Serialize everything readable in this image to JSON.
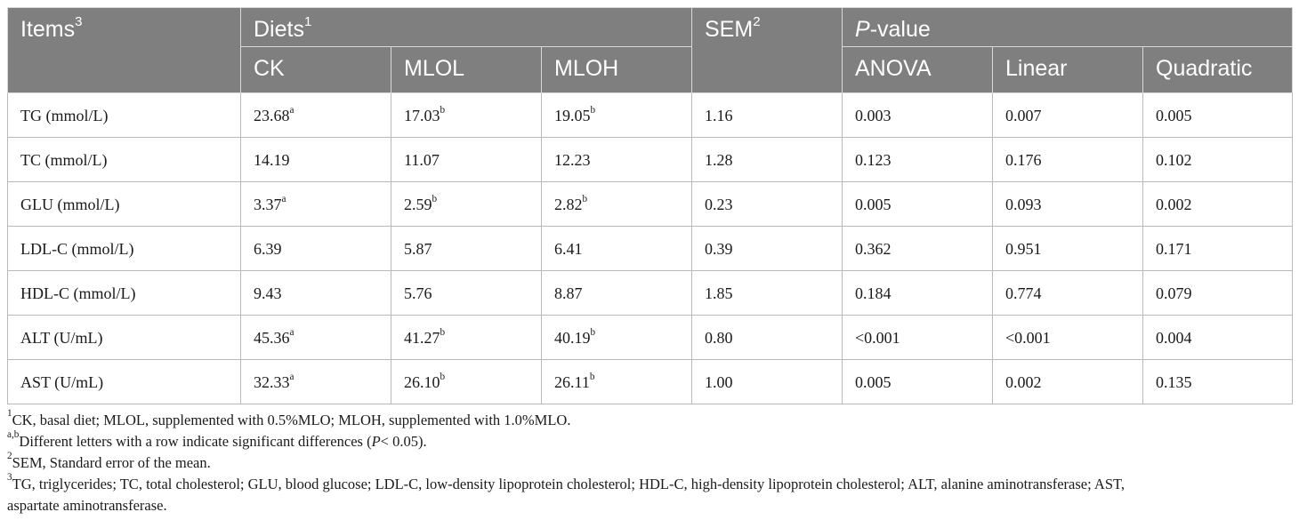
{
  "header": {
    "items": "Items",
    "items_sup": "3",
    "diets": "Diets",
    "diets_sup": "1",
    "sem": "SEM",
    "sem_sup": "2",
    "pvalue_italic": "P",
    "pvalue_rest": "-value",
    "sub": [
      "CK",
      "MLOL",
      "MLOH",
      "ANOVA",
      "Linear",
      "Quadratic"
    ]
  },
  "rows": [
    {
      "item": "TG (mmol/L)",
      "ck": "23.68",
      "ck_sup": "a",
      "mlol": "17.03",
      "mlol_sup": "b",
      "mloh": "19.05",
      "mloh_sup": "b",
      "sem": "1.16",
      "anova": "0.003",
      "linear": "0.007",
      "quadratic": "0.005"
    },
    {
      "item": "TC (mmol/L)",
      "ck": "14.19",
      "ck_sup": "",
      "mlol": "11.07",
      "mlol_sup": "",
      "mloh": "12.23",
      "mloh_sup": "",
      "sem": "1.28",
      "anova": "0.123",
      "linear": "0.176",
      "quadratic": "0.102"
    },
    {
      "item": "GLU (mmol/L)",
      "ck": "3.37",
      "ck_sup": "a",
      "mlol": "2.59",
      "mlol_sup": "b",
      "mloh": "2.82",
      "mloh_sup": "b",
      "sem": "0.23",
      "anova": "0.005",
      "linear": "0.093",
      "quadratic": "0.002"
    },
    {
      "item": "LDL-C (mmol/L)",
      "ck": "6.39",
      "ck_sup": "",
      "mlol": "5.87",
      "mlol_sup": "",
      "mloh": "6.41",
      "mloh_sup": "",
      "sem": "0.39",
      "anova": "0.362",
      "linear": "0.951",
      "quadratic": "0.171"
    },
    {
      "item": "HDL-C (mmol/L)",
      "ck": "9.43",
      "ck_sup": "",
      "mlol": "5.76",
      "mlol_sup": "",
      "mloh": "8.87",
      "mloh_sup": "",
      "sem": "1.85",
      "anova": "0.184",
      "linear": "0.774",
      "quadratic": "0.079"
    },
    {
      "item": "ALT (U/mL)",
      "ck": "45.36",
      "ck_sup": "a",
      "mlol": "41.27",
      "mlol_sup": "b",
      "mloh": "40.19",
      "mloh_sup": "b",
      "sem": "0.80",
      "anova": "<0.001",
      "linear": "<0.001",
      "quadratic": "0.004"
    },
    {
      "item": "AST (U/mL)",
      "ck": "32.33",
      "ck_sup": "a",
      "mlol": "26.10",
      "mlol_sup": "b",
      "mloh": "26.11",
      "mloh_sup": "b",
      "sem": "1.00",
      "anova": "0.005",
      "linear": "0.002",
      "quadratic": "0.135"
    }
  ],
  "footnotes": {
    "n1_sup": "1",
    "n1": "CK, basal diet; MLOL, supplemented with 0.5%MLO; MLOH, supplemented with 1.0%MLO.",
    "n2_sup": "a,b",
    "n2_a": "Different letters with a row indicate significant differences (",
    "n2_p": "P",
    "n2_b": "< 0.05).",
    "n3_sup": "2",
    "n3": "SEM, Standard error of the mean.",
    "n4_sup": "3",
    "n4_line1": "TG, triglycerides; TC, total cholesterol; GLU, blood glucose; LDL-C, low-density lipoprotein cholesterol; HDL-C, high-density lipoprotein cholesterol; ALT, alanine aminotransferase; AST,",
    "n4_line2": "aspartate aminotransferase."
  }
}
